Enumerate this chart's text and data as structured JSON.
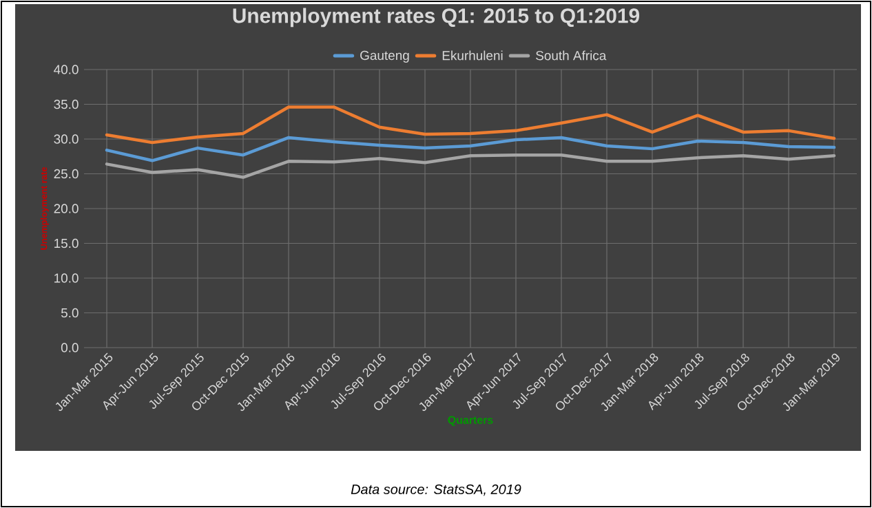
{
  "chart_data": {
    "type": "line",
    "title": "Unemployment rates Q1: 2015 to Q1:2019",
    "xlabel": "Quarters",
    "ylabel": "Unemployment rate",
    "categories": [
      "Jan-Mar 2015",
      "Apr-Jun 2015",
      "Jul-Sep 2015",
      "Oct-Dec 2015",
      "Jan-Mar 2016",
      "Apr-Jun 2016",
      "Jul-Sep 2016",
      "Oct-Dec 2016",
      "Jan-Mar 2017",
      "Apr-Jun 2017",
      "Jul-Sep 2017",
      "Oct-Dec 2017",
      "Jan-Mar 2018",
      "Apr-Jun 2018",
      "Jul-Sep 2018",
      "Oct-Dec 2018",
      "Jan-Mar 2019"
    ],
    "series": [
      {
        "name": "Gauteng",
        "color": "#5b9bd5",
        "values": [
          28.4,
          26.9,
          28.7,
          27.7,
          30.2,
          29.6,
          29.1,
          28.7,
          29.0,
          29.9,
          30.2,
          29.0,
          28.6,
          29.7,
          29.5,
          28.9,
          28.8
        ]
      },
      {
        "name": "Ekurhuleni",
        "color": "#ed7d31",
        "values": [
          30.6,
          29.5,
          30.3,
          30.8,
          34.6,
          34.6,
          31.7,
          30.7,
          30.8,
          31.2,
          32.3,
          33.5,
          31.0,
          33.4,
          31.0,
          31.2,
          30.1
        ]
      },
      {
        "name": "South Africa",
        "color": "#a5a5a5",
        "values": [
          26.4,
          25.2,
          25.6,
          24.5,
          26.8,
          26.7,
          27.2,
          26.6,
          27.6,
          27.7,
          27.7,
          26.8,
          26.8,
          27.3,
          27.6,
          27.1,
          27.6
        ]
      }
    ],
    "ylim": [
      0,
      40
    ],
    "yticks": [
      {
        "value": 0,
        "label": "0.0"
      },
      {
        "value": 5,
        "label": "5.0"
      },
      {
        "value": 10,
        "label": "10.0"
      },
      {
        "value": 15,
        "label": "15.0"
      },
      {
        "value": 20,
        "label": "20.0"
      },
      {
        "value": 25,
        "label": "25.0"
      },
      {
        "value": 30,
        "label": "30.0"
      },
      {
        "value": 35,
        "label": "35.0"
      },
      {
        "value": 40,
        "label": "40.0"
      }
    ],
    "grid": true,
    "legend": "top",
    "marker": "none",
    "line_style": "solid",
    "annotations": [
      "Data source: StatsSA, 2019"
    ]
  }
}
